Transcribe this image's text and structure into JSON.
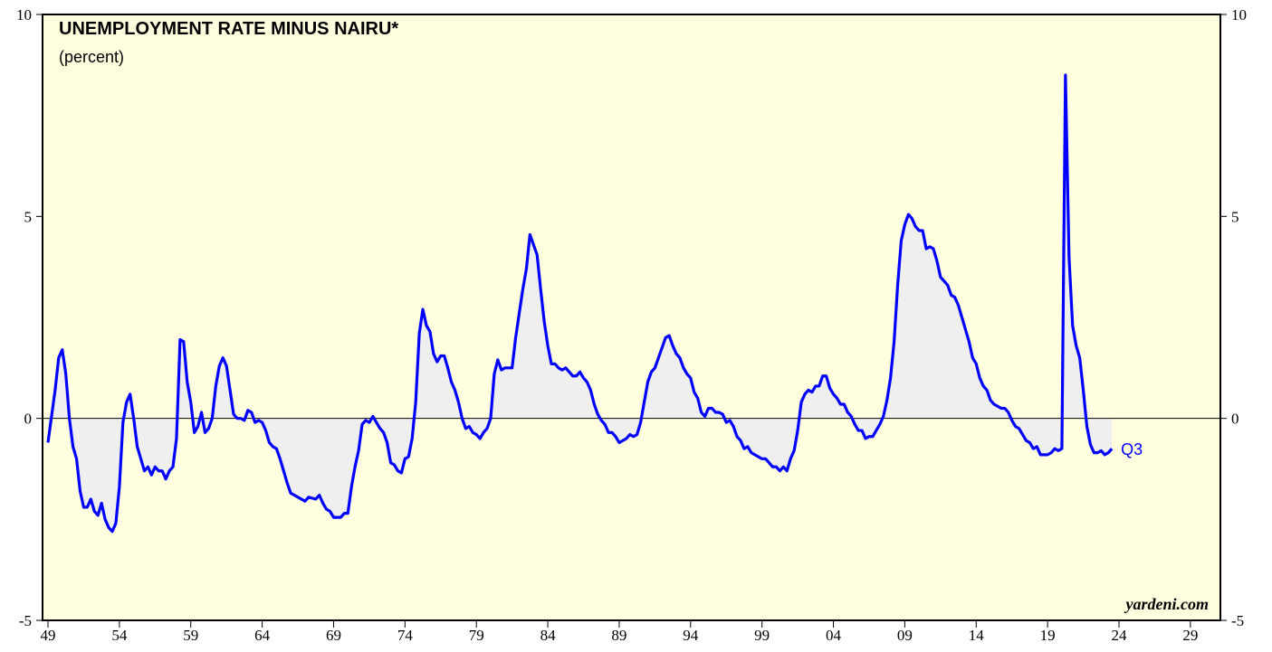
{
  "chart_data": {
    "type": "line",
    "title": "UNEMPLOYMENT RATE MINUS NAIRU*",
    "subtitle": "(percent)",
    "annotation": "Q3",
    "source": "yardeni.com",
    "xlim": [
      1948.62,
      2031.1
    ],
    "xticks": [
      {
        "value": 1949,
        "label": "49"
      },
      {
        "value": 1954,
        "label": "54"
      },
      {
        "value": 1959,
        "label": "59"
      },
      {
        "value": 1964,
        "label": "64"
      },
      {
        "value": 1969,
        "label": "69"
      },
      {
        "value": 1974,
        "label": "74"
      },
      {
        "value": 1979,
        "label": "79"
      },
      {
        "value": 1984,
        "label": "84"
      },
      {
        "value": 1989,
        "label": "89"
      },
      {
        "value": 1994,
        "label": "94"
      },
      {
        "value": 1999,
        "label": "99"
      },
      {
        "value": 2004,
        "label": "04"
      },
      {
        "value": 2009,
        "label": "09"
      },
      {
        "value": 2014,
        "label": "14"
      },
      {
        "value": 2019,
        "label": "19"
      },
      {
        "value": 2024,
        "label": "24"
      },
      {
        "value": 2029,
        "label": "29"
      }
    ],
    "ylim": [
      -5,
      10
    ],
    "yticks": [
      -5,
      0,
      5,
      10
    ],
    "y2lim": [
      -5,
      10
    ],
    "y2ticks": [
      -5,
      0,
      5,
      10
    ],
    "grid": false,
    "x": [
      1949.0,
      1949.5,
      1949.75,
      1950.0,
      1950.25,
      1950.5,
      1950.75,
      1951.0,
      1951.25,
      1951.5,
      1951.75,
      1952.0,
      1952.25,
      1952.5,
      1952.75,
      1953.0,
      1953.25,
      1953.5,
      1953.75,
      1954.0,
      1954.25,
      1954.5,
      1954.75,
      1955.0,
      1955.25,
      1955.5,
      1955.75,
      1956.0,
      1956.25,
      1956.5,
      1956.75,
      1957.0,
      1957.25,
      1957.5,
      1957.75,
      1958.0,
      1958.25,
      1958.5,
      1958.75,
      1959.0,
      1959.25,
      1959.5,
      1959.75,
      1960.0,
      1960.25,
      1960.5,
      1960.75,
      1961.0,
      1961.25,
      1961.5,
      1961.75,
      1962.0,
      1962.25,
      1962.5,
      1962.75,
      1963.0,
      1963.25,
      1963.5,
      1963.75,
      1964.0,
      1964.25,
      1964.5,
      1964.75,
      1965.0,
      1965.25,
      1965.5,
      1965.75,
      1966.0,
      1966.5,
      1967.0,
      1967.25,
      1967.75,
      1968.0,
      1968.25,
      1968.5,
      1968.75,
      1969.0,
      1969.5,
      1969.75,
      1970.0,
      1970.25,
      1970.5,
      1970.75,
      1971.0,
      1971.25,
      1971.5,
      1971.75,
      1972.0,
      1972.25,
      1972.5,
      1972.75,
      1973.0,
      1973.25,
      1973.5,
      1973.75,
      1974.0,
      1974.25,
      1974.5,
      1974.75,
      1975.0,
      1975.25,
      1975.5,
      1975.75,
      1976.0,
      1976.25,
      1976.5,
      1976.75,
      1977.0,
      1977.25,
      1977.5,
      1977.75,
      1978.0,
      1978.25,
      1978.5,
      1978.75,
      1979.0,
      1979.25,
      1979.5,
      1979.75,
      1980.0,
      1980.25,
      1980.5,
      1980.75,
      1981.0,
      1981.25,
      1981.5,
      1981.75,
      1982.0,
      1982.25,
      1982.5,
      1982.75,
      1983.0,
      1983.25,
      1983.5,
      1983.75,
      1984.0,
      1984.25,
      1984.5,
      1984.75,
      1985.0,
      1985.25,
      1985.5,
      1985.75,
      1986.0,
      1986.25,
      1986.5,
      1986.75,
      1987.0,
      1987.25,
      1987.5,
      1987.75,
      1988.0,
      1988.25,
      1988.5,
      1988.75,
      1989.0,
      1989.25,
      1989.5,
      1989.75,
      1990.0,
      1990.25,
      1990.5,
      1990.75,
      1991.0,
      1991.25,
      1991.5,
      1991.75,
      1992.0,
      1992.25,
      1992.5,
      1992.75,
      1993.0,
      1993.25,
      1993.5,
      1993.75,
      1994.0,
      1994.25,
      1994.5,
      1994.75,
      1995.0,
      1995.25,
      1995.5,
      1995.75,
      1996.0,
      1996.25,
      1996.5,
      1996.75,
      1997.0,
      1997.25,
      1997.5,
      1997.75,
      1998.0,
      1998.25,
      1998.5,
      1998.75,
      1999.0,
      1999.25,
      1999.5,
      1999.75,
      2000.0,
      2000.25,
      2000.5,
      2000.75,
      2001.0,
      2001.25,
      2001.5,
      2001.75,
      2002.0,
      2002.25,
      2002.5,
      2002.75,
      2003.0,
      2003.25,
      2003.5,
      2003.75,
      2004.0,
      2004.25,
      2004.5,
      2004.75,
      2005.0,
      2005.25,
      2005.5,
      2005.75,
      2006.0,
      2006.25,
      2006.5,
      2006.75,
      2007.0,
      2007.25,
      2007.5,
      2007.75,
      2008.0,
      2008.25,
      2008.5,
      2008.75,
      2009.0,
      2009.25,
      2009.5,
      2009.75,
      2010.0,
      2010.25,
      2010.5,
      2010.75,
      2011.0,
      2011.25,
      2011.5,
      2011.75,
      2012.0,
      2012.25,
      2012.5,
      2012.75,
      2013.0,
      2013.25,
      2013.5,
      2013.75,
      2014.0,
      2014.25,
      2014.5,
      2014.75,
      2015.0,
      2015.25,
      2015.5,
      2015.75,
      2016.0,
      2016.25,
      2016.5,
      2016.75,
      2017.0,
      2017.25,
      2017.5,
      2017.75,
      2018.0,
      2018.25,
      2018.5,
      2018.75,
      2019.0,
      2019.25,
      2019.5,
      2019.75,
      2020.0,
      2020.25,
      2020.5,
      2020.75,
      2021.0,
      2021.25,
      2021.5,
      2021.75,
      2022.0,
      2022.25,
      2022.5,
      2022.75,
      2023.0,
      2023.25,
      2023.5
    ],
    "series": [
      {
        "name": "Unemployment rate minus NAIRU",
        "color": "#0000ff",
        "values": [
          -0.6,
          0.7,
          1.5,
          1.7,
          1.1,
          0.0,
          -0.7,
          -1.0,
          -1.8,
          -2.2,
          -2.2,
          -2.0,
          -2.3,
          -2.4,
          -2.1,
          -2.5,
          -2.7,
          -2.8,
          -2.6,
          -1.7,
          -0.1,
          0.4,
          0.6,
          0.0,
          -0.7,
          -1.0,
          -1.3,
          -1.2,
          -1.4,
          -1.2,
          -1.3,
          -1.3,
          -1.5,
          -1.3,
          -1.2,
          -0.5,
          1.95,
          1.9,
          0.9,
          0.4,
          -0.35,
          -0.2,
          0.15,
          -0.35,
          -0.25,
          0.0,
          0.8,
          1.3,
          1.5,
          1.3,
          0.7,
          0.1,
          0.0,
          0.0,
          -0.05,
          0.2,
          0.15,
          -0.1,
          -0.05,
          -0.1,
          -0.3,
          -0.6,
          -0.7,
          -0.75,
          -1.0,
          -1.3,
          -1.6,
          -1.85,
          -1.95,
          -2.05,
          -1.95,
          -2.0,
          -1.9,
          -2.1,
          -2.25,
          -2.3,
          -2.45,
          -2.45,
          -2.35,
          -2.35,
          -1.7,
          -1.2,
          -0.8,
          -0.15,
          -0.05,
          -0.1,
          0.05,
          -0.1,
          -0.25,
          -0.35,
          -0.6,
          -1.1,
          -1.15,
          -1.3,
          -1.35,
          -1.0,
          -0.95,
          -0.5,
          0.4,
          2.1,
          2.7,
          2.3,
          2.15,
          1.6,
          1.4,
          1.55,
          1.55,
          1.25,
          0.9,
          0.7,
          0.4,
          0.0,
          -0.25,
          -0.2,
          -0.35,
          -0.4,
          -0.5,
          -0.35,
          -0.25,
          0.0,
          1.1,
          1.45,
          1.2,
          1.25,
          1.25,
          1.25,
          2.0,
          2.6,
          3.2,
          3.7,
          4.55,
          4.3,
          4.05,
          3.2,
          2.4,
          1.8,
          1.35,
          1.35,
          1.25,
          1.2,
          1.25,
          1.15,
          1.05,
          1.05,
          1.15,
          1.0,
          0.9,
          0.7,
          0.35,
          0.1,
          -0.05,
          -0.15,
          -0.35,
          -0.35,
          -0.45,
          -0.6,
          -0.55,
          -0.5,
          -0.4,
          -0.45,
          -0.4,
          -0.1,
          0.4,
          0.9,
          1.15,
          1.25,
          1.5,
          1.75,
          2.0,
          2.05,
          1.8,
          1.6,
          1.5,
          1.25,
          1.1,
          1.0,
          0.65,
          0.5,
          0.15,
          0.05,
          0.25,
          0.25,
          0.15,
          0.15,
          0.1,
          -0.1,
          -0.05,
          -0.2,
          -0.45,
          -0.55,
          -0.75,
          -0.7,
          -0.85,
          -0.9,
          -0.95,
          -1.0,
          -1.0,
          -1.1,
          -1.2,
          -1.2,
          -1.3,
          -1.2,
          -1.3,
          -1.0,
          -0.8,
          -0.3,
          0.4,
          0.6,
          0.7,
          0.65,
          0.8,
          0.8,
          1.05,
          1.05,
          0.75,
          0.6,
          0.5,
          0.35,
          0.35,
          0.15,
          0.05,
          -0.15,
          -0.3,
          -0.3,
          -0.5,
          -0.45,
          -0.45,
          -0.3,
          -0.15,
          0.05,
          0.45,
          1.0,
          1.9,
          3.3,
          4.4,
          4.8,
          5.05,
          4.95,
          4.75,
          4.65,
          4.65,
          4.2,
          4.25,
          4.2,
          3.9,
          3.5,
          3.4,
          3.3,
          3.05,
          3.0,
          2.8,
          2.5,
          2.2,
          1.9,
          1.5,
          1.35,
          1.0,
          0.8,
          0.7,
          0.45,
          0.35,
          0.3,
          0.25,
          0.25,
          0.15,
          -0.05,
          -0.2,
          -0.25,
          -0.4,
          -0.55,
          -0.6,
          -0.75,
          -0.7,
          -0.9,
          -0.9,
          -0.9,
          -0.85,
          -0.75,
          -0.8,
          -0.75,
          8.5,
          4.0,
          2.3,
          1.8,
          1.5,
          0.7,
          -0.2,
          -0.65,
          -0.85,
          -0.85,
          -0.8,
          -0.9,
          -0.85,
          -0.75
        ]
      }
    ]
  }
}
